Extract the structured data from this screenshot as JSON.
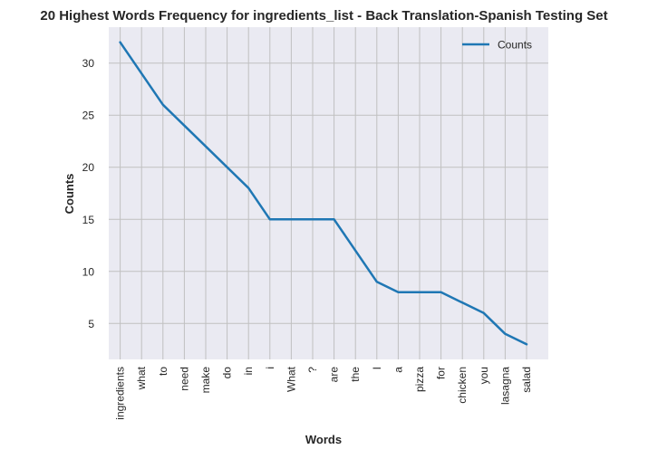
{
  "chart_data": {
    "type": "line",
    "title": "20 Highest Words Frequency for ingredients_list - Back Translation-Spanish Testing Set",
    "xlabel": "Words",
    "ylabel": "Counts",
    "categories": [
      "ingredients",
      "what",
      "to",
      "need",
      "make",
      "do",
      "in",
      "i",
      "What",
      "?",
      "are",
      "the",
      "I",
      "a",
      "pizza",
      "for",
      "chicken",
      "you",
      "lasagna",
      "salad"
    ],
    "series": [
      {
        "name": "Counts",
        "values": [
          32,
          29,
          26,
          24,
          22,
          20,
          18,
          15,
          15,
          15,
          15,
          12,
          9,
          8,
          8,
          8,
          7,
          6,
          4,
          3
        ]
      }
    ],
    "yticks": [
      5,
      10,
      15,
      20,
      25,
      30
    ],
    "ylim": [
      1.55,
      33.45
    ],
    "grid": true,
    "legend_position": "top-right",
    "colors": {
      "line": "#1f77b4",
      "plot_background": "#eaeaf2",
      "grid": "#c0c0c0"
    }
  }
}
